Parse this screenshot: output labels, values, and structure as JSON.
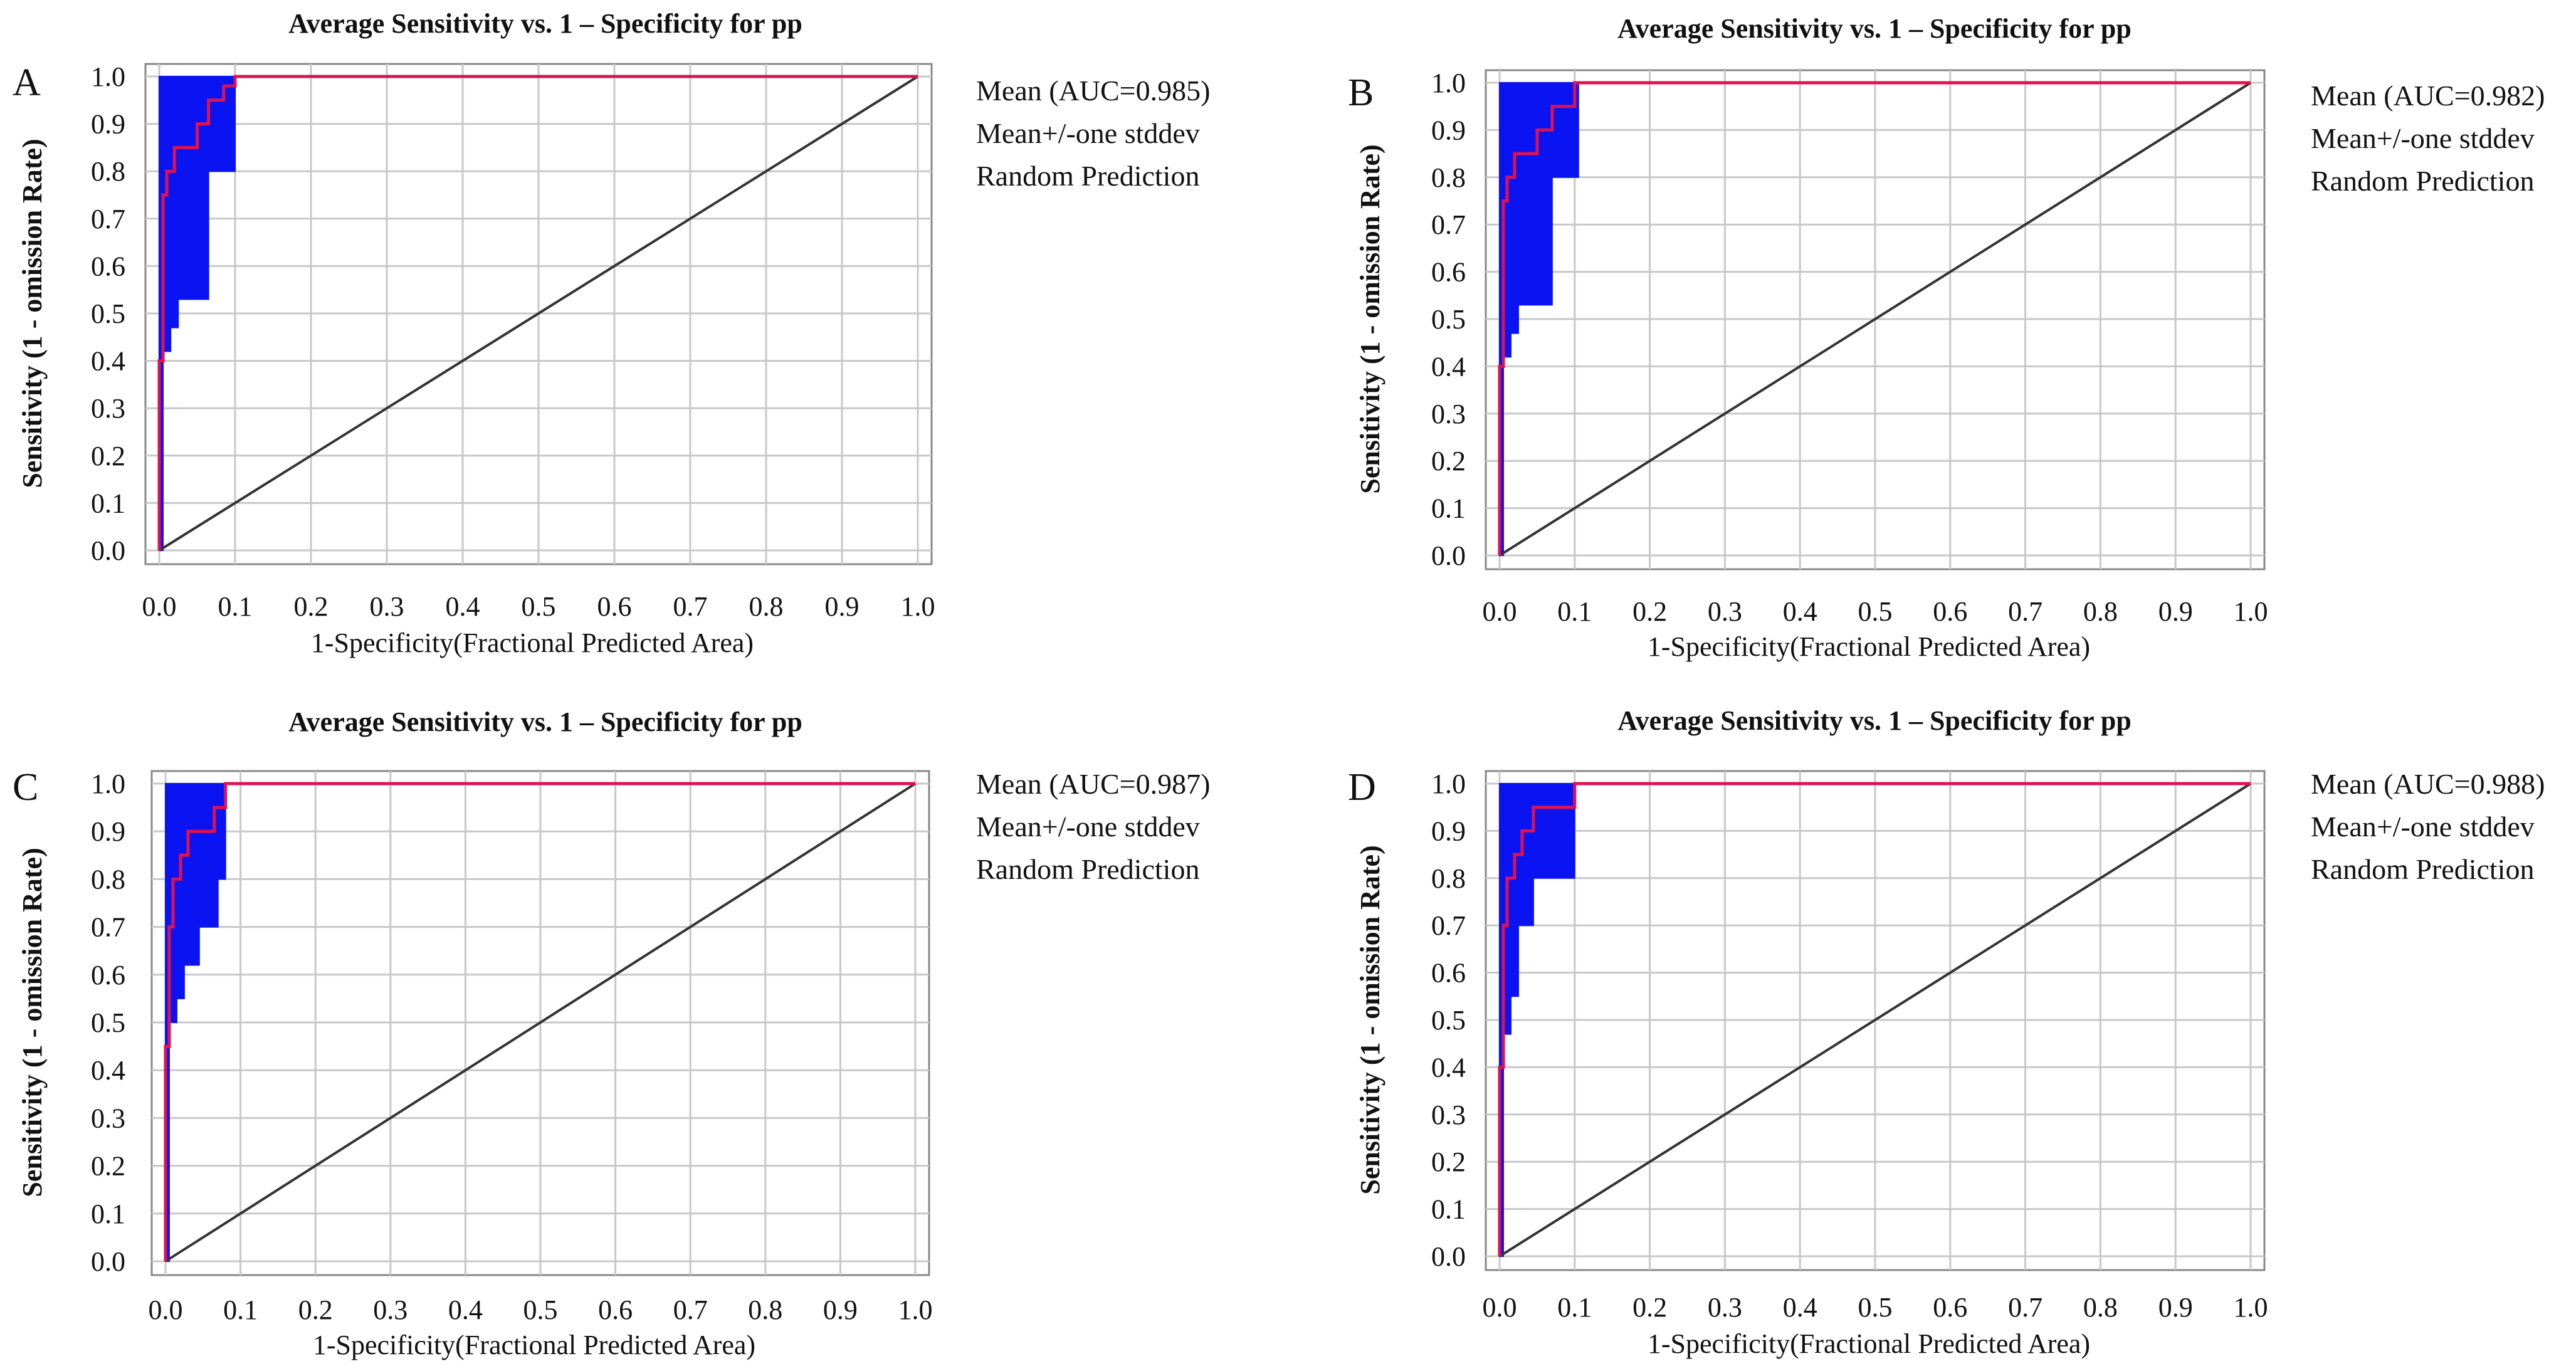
{
  "colors": {
    "mean_line": "#e0114f",
    "stddev_band": "#0a14f2",
    "random_line": "#333333",
    "grid": "#c8c8c8",
    "frame": "#888888"
  },
  "chart_data": [
    {
      "panel": "A",
      "type": "line",
      "title": "Average Sensitivity vs. 1 – Specificity for pp",
      "xlabel": "1-Specificity(Fractional Predicted Area)",
      "ylabel": "Sensitivity (1 - omission Rate)",
      "xlim": [
        0,
        1
      ],
      "ylim": [
        0,
        1
      ],
      "x_ticks": [
        "0.0",
        "0.1",
        "0.2",
        "0.3",
        "0.4",
        "0.5",
        "0.6",
        "0.7",
        "0.8",
        "0.9",
        "1.0"
      ],
      "y_ticks": [
        "0.0",
        "0.1",
        "0.2",
        "0.3",
        "0.4",
        "0.5",
        "0.6",
        "0.7",
        "0.8",
        "0.9",
        "1.0"
      ],
      "grid": true,
      "legend": [
        "Mean (AUC=0.985)",
        "Mean+/-one stddev",
        "Random Prediction"
      ],
      "series": [
        {
          "name": "Mean",
          "x": [
            0.0,
            0.0,
            0.005,
            0.005,
            0.01,
            0.01,
            0.02,
            0.02,
            0.03,
            0.03,
            0.05,
            0.05,
            0.065,
            0.065,
            0.085,
            0.085,
            0.1,
            0.1,
            1.0
          ],
          "y": [
            0.0,
            0.4,
            0.4,
            0.75,
            0.75,
            0.8,
            0.8,
            0.85,
            0.85,
            0.85,
            0.85,
            0.9,
            0.9,
            0.95,
            0.95,
            0.98,
            0.98,
            1.0,
            1.0
          ]
        },
        {
          "name": "Mean+/-one stddev upper",
          "x": [
            0.0,
            0.0,
            0.1,
            1.0
          ],
          "y": [
            0.0,
            1.0,
            1.0,
            1.0
          ]
        },
        {
          "name": "Mean+/-one stddev lower",
          "x": [
            0.0,
            0.005,
            0.005,
            0.015,
            0.015,
            0.025,
            0.025,
            0.065,
            0.065,
            0.1,
            0.1,
            0.105,
            1.0
          ],
          "y": [
            0.0,
            0.0,
            0.42,
            0.42,
            0.47,
            0.47,
            0.53,
            0.53,
            0.8,
            0.8,
            1.0,
            1.0,
            1.0
          ]
        },
        {
          "name": "Random Prediction",
          "x": [
            0.0,
            1.0
          ],
          "y": [
            0.0,
            1.0
          ]
        }
      ]
    },
    {
      "panel": "B",
      "type": "line",
      "title": "Average Sensitivity vs. 1 – Specificity for pp",
      "xlabel": "1-Specificity(Fractional Predicted Area)",
      "ylabel": "Sensitivity (1 - omission Rate)",
      "xlim": [
        0,
        1
      ],
      "ylim": [
        0,
        1
      ],
      "x_ticks": [
        "0.0",
        "0.1",
        "0.2",
        "0.3",
        "0.4",
        "0.5",
        "0.6",
        "0.7",
        "0.8",
        "0.9",
        "1.0"
      ],
      "y_ticks": [
        "0.0",
        "0.1",
        "0.2",
        "0.3",
        "0.4",
        "0.5",
        "0.6",
        "0.7",
        "0.8",
        "0.9",
        "1.0"
      ],
      "grid": true,
      "legend": [
        "Mean (AUC=0.982)",
        "Mean+/-one stddev",
        "Random Prediction"
      ],
      "series": [
        {
          "name": "Mean",
          "x": [
            0.0,
            0.0,
            0.005,
            0.005,
            0.01,
            0.01,
            0.02,
            0.02,
            0.05,
            0.05,
            0.07,
            0.07,
            0.09,
            0.09,
            0.1,
            0.1,
            1.0
          ],
          "y": [
            0.0,
            0.4,
            0.4,
            0.75,
            0.75,
            0.8,
            0.8,
            0.85,
            0.85,
            0.9,
            0.9,
            0.95,
            0.95,
            0.95,
            0.95,
            1.0,
            1.0
          ]
        },
        {
          "name": "Mean+/-one stddev upper",
          "x": [
            0.0,
            0.0,
            0.1,
            1.0
          ],
          "y": [
            0.0,
            1.0,
            1.0,
            1.0
          ]
        },
        {
          "name": "Mean+/-one stddev lower",
          "x": [
            0.0,
            0.005,
            0.005,
            0.015,
            0.015,
            0.025,
            0.025,
            0.07,
            0.07,
            0.105,
            0.105,
            0.11,
            1.0
          ],
          "y": [
            0.0,
            0.0,
            0.42,
            0.42,
            0.47,
            0.47,
            0.53,
            0.53,
            0.8,
            0.8,
            1.0,
            1.0,
            1.0
          ]
        },
        {
          "name": "Random Prediction",
          "x": [
            0.0,
            1.0
          ],
          "y": [
            0.0,
            1.0
          ]
        }
      ]
    },
    {
      "panel": "C",
      "type": "line",
      "title": "Average Sensitivity vs. 1 – Specificity for pp",
      "xlabel": "1-Specificity(Fractional Predicted Area)",
      "ylabel": "Sensitivity (1 - omission Rate)",
      "xlim": [
        0,
        1
      ],
      "ylim": [
        0,
        1
      ],
      "x_ticks": [
        "0.0",
        "0.1",
        "0.2",
        "0.3",
        "0.4",
        "0.5",
        "0.6",
        "0.7",
        "0.8",
        "0.9",
        "1.0"
      ],
      "y_ticks": [
        "0.0",
        "0.1",
        "0.2",
        "0.3",
        "0.4",
        "0.5",
        "0.6",
        "0.7",
        "0.8",
        "0.9",
        "1.0"
      ],
      "grid": true,
      "legend": [
        "Mean (AUC=0.987)",
        "Mean+/-one stddev",
        "Random Prediction"
      ],
      "series": [
        {
          "name": "Mean",
          "x": [
            0.0,
            0.0,
            0.005,
            0.005,
            0.01,
            0.01,
            0.02,
            0.02,
            0.03,
            0.03,
            0.045,
            0.045,
            0.065,
            0.065,
            0.08,
            0.08,
            1.0
          ],
          "y": [
            0.0,
            0.45,
            0.45,
            0.7,
            0.7,
            0.8,
            0.8,
            0.85,
            0.85,
            0.9,
            0.9,
            0.9,
            0.9,
            0.95,
            0.95,
            1.0,
            1.0
          ]
        },
        {
          "name": "Mean+/-one stddev upper",
          "x": [
            0.0,
            0.0,
            0.085,
            1.0
          ],
          "y": [
            0.0,
            1.0,
            1.0,
            1.0
          ]
        },
        {
          "name": "Mean+/-one stddev lower",
          "x": [
            0.0,
            0.005,
            0.005,
            0.015,
            0.015,
            0.025,
            0.025,
            0.045,
            0.045,
            0.07,
            0.07,
            0.08,
            0.08,
            1.0
          ],
          "y": [
            0.0,
            0.0,
            0.5,
            0.5,
            0.55,
            0.55,
            0.62,
            0.62,
            0.7,
            0.7,
            0.8,
            0.8,
            1.0,
            1.0
          ]
        },
        {
          "name": "Random Prediction",
          "x": [
            0.0,
            1.0
          ],
          "y": [
            0.0,
            1.0
          ]
        }
      ]
    },
    {
      "panel": "D",
      "type": "line",
      "title": "Average Sensitivity vs. 1 – Specificity for pp",
      "xlabel": "1-Specificity(Fractional Predicted Area)",
      "ylabel": "Sensitivity (1 - omission Rate)",
      "xlim": [
        0,
        1
      ],
      "ylim": [
        0,
        1
      ],
      "x_ticks": [
        "0.0",
        "0.1",
        "0.2",
        "0.3",
        "0.4",
        "0.5",
        "0.6",
        "0.7",
        "0.8",
        "0.9",
        "1.0"
      ],
      "y_ticks": [
        "0.0",
        "0.1",
        "0.2",
        "0.3",
        "0.4",
        "0.5",
        "0.6",
        "0.7",
        "0.8",
        "0.9",
        "1.0"
      ],
      "grid": true,
      "legend": [
        "Mean (AUC=0.988)",
        "Mean+/-one stddev",
        "Random Prediction"
      ],
      "series": [
        {
          "name": "Mean",
          "x": [
            0.0,
            0.0,
            0.005,
            0.005,
            0.01,
            0.01,
            0.02,
            0.02,
            0.03,
            0.03,
            0.045,
            0.045,
            0.07,
            0.07,
            0.1,
            0.1,
            1.0
          ],
          "y": [
            0.0,
            0.4,
            0.4,
            0.7,
            0.7,
            0.8,
            0.8,
            0.85,
            0.85,
            0.9,
            0.9,
            0.95,
            0.95,
            0.95,
            0.95,
            1.0,
            1.0
          ]
        },
        {
          "name": "Mean+/-one stddev upper",
          "x": [
            0.0,
            0.0,
            0.1,
            1.0
          ],
          "y": [
            0.0,
            1.0,
            1.0,
            1.0
          ]
        },
        {
          "name": "Mean+/-one stddev lower",
          "x": [
            0.0,
            0.005,
            0.005,
            0.015,
            0.015,
            0.025,
            0.025,
            0.045,
            0.045,
            0.1,
            0.1,
            0.105,
            1.0
          ],
          "y": [
            0.0,
            0.0,
            0.47,
            0.47,
            0.55,
            0.55,
            0.7,
            0.7,
            0.8,
            0.8,
            1.0,
            1.0,
            1.0
          ]
        },
        {
          "name": "Random Prediction",
          "x": [
            0.0,
            1.0
          ],
          "y": [
            0.0,
            1.0
          ]
        }
      ]
    }
  ]
}
